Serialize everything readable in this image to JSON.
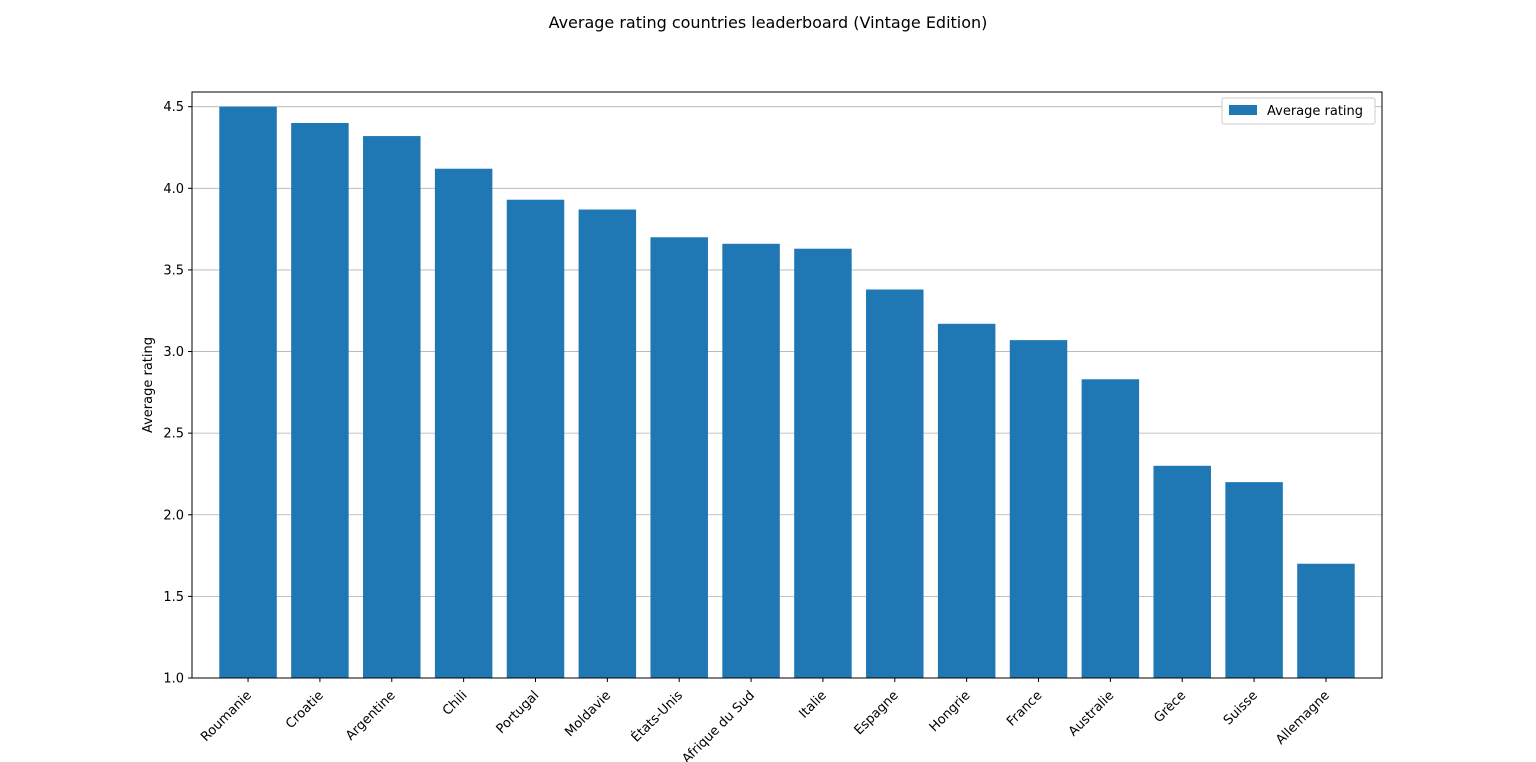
{
  "chart_data": {
    "type": "bar",
    "title": "Average rating countries leaderboard (Vintage Edition)",
    "xlabel": "",
    "ylabel": "Average rating",
    "categories": [
      "Roumanie",
      "Croatie",
      "Argentine",
      "Chili",
      "Portugal",
      "Moldavie",
      "États-Unis",
      "Afrique du Sud",
      "Italie",
      "Espagne",
      "Hongrie",
      "France",
      "Australie",
      "Grèce",
      "Suisse",
      "Allemagne"
    ],
    "series": [
      {
        "name": "Average rating",
        "values": [
          4.5,
          4.4,
          4.32,
          4.12,
          3.93,
          3.87,
          3.7,
          3.66,
          3.63,
          3.38,
          3.17,
          3.07,
          2.83,
          2.3,
          2.2,
          1.7
        ],
        "color": "#1f77b4"
      }
    ],
    "ylim": [
      1.0,
      4.59
    ],
    "yticks": [
      "1.0",
      "1.5",
      "2.0",
      "2.5",
      "3.0",
      "3.5",
      "4.0",
      "4.5"
    ],
    "grid": "y",
    "legend": "top-right"
  }
}
